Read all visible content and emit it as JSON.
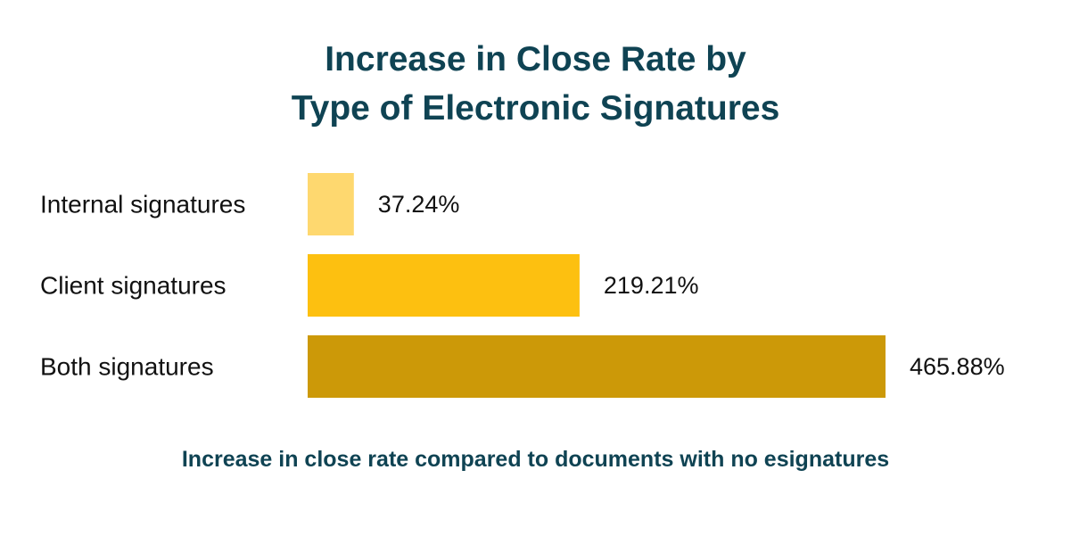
{
  "title": {
    "line1": "Increase in Close Rate by",
    "line2": "Type of Electronic Signatures"
  },
  "subtitle": "Increase in close rate compared to documents with no esignatures",
  "chart_data": {
    "type": "bar",
    "orientation": "horizontal",
    "categories": [
      "Internal signatures",
      "Client signatures",
      "Both signatures"
    ],
    "values": [
      37.24,
      219.21,
      465.88
    ],
    "value_labels": [
      "37.24%",
      "219.21%",
      "465.88%"
    ],
    "unit": "%",
    "colors": [
      "#fed86f",
      "#fdc010",
      "#cc9908"
    ],
    "title": "Increase in Close Rate by Type of Electronic Signatures",
    "xlabel": "",
    "ylabel": "",
    "xlim": [
      0,
      465.88
    ],
    "grid": false,
    "legend": "none"
  },
  "colors": {
    "title": "#0f4353",
    "text": "#111111",
    "background": "#ffffff"
  }
}
